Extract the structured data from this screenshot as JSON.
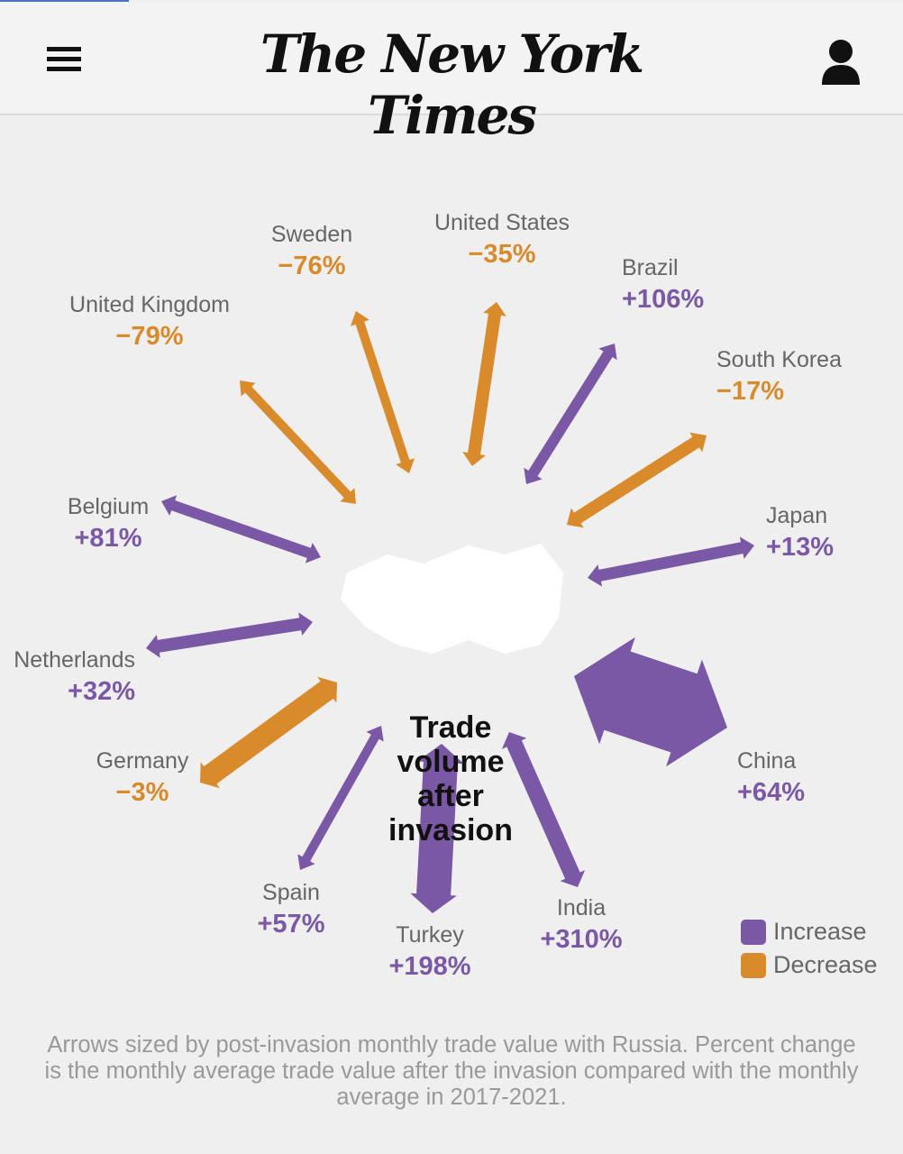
{
  "header": {
    "logo": "The New York Times",
    "menu_icon": "hamburger-menu-icon",
    "account_icon": "user-account-icon"
  },
  "chart_data": {
    "type": "radial-arrows",
    "center_title": "Trade volume after invasion",
    "colors": {
      "increase": "#7a58a6",
      "decrease": "#d98a2b"
    },
    "legend": [
      {
        "label": "Increase",
        "color": "#7a58a6"
      },
      {
        "label": "Decrease",
        "color": "#d98a2b"
      }
    ],
    "countries": [
      {
        "name": "United States",
        "change": "−35%",
        "value": -35,
        "direction": "decrease"
      },
      {
        "name": "Brazil",
        "change": "+106%",
        "value": 106,
        "direction": "increase"
      },
      {
        "name": "South Korea",
        "change": "−17%",
        "value": -17,
        "direction": "decrease"
      },
      {
        "name": "Japan",
        "change": "+13%",
        "value": 13,
        "direction": "increase"
      },
      {
        "name": "China",
        "change": "+64%",
        "value": 64,
        "direction": "increase"
      },
      {
        "name": "India",
        "change": "+310%",
        "value": 310,
        "direction": "increase"
      },
      {
        "name": "Turkey",
        "change": "+198%",
        "value": 198,
        "direction": "increase"
      },
      {
        "name": "Spain",
        "change": "+57%",
        "value": 57,
        "direction": "increase"
      },
      {
        "name": "Germany",
        "change": "−3%",
        "value": -3,
        "direction": "decrease"
      },
      {
        "name": "Netherlands",
        "change": "+32%",
        "value": 32,
        "direction": "increase"
      },
      {
        "name": "Belgium",
        "change": "+81%",
        "value": 81,
        "direction": "increase"
      },
      {
        "name": "United Kingdom",
        "change": "−79%",
        "value": -79,
        "direction": "decrease"
      },
      {
        "name": "Sweden",
        "change": "−76%",
        "value": -76,
        "direction": "decrease"
      }
    ]
  },
  "footnote": "Arrows sized by post-invasion monthly trade value with Russia. Percent change is the monthly average trade value after the invasion compared with the monthly average in 2017-2021."
}
